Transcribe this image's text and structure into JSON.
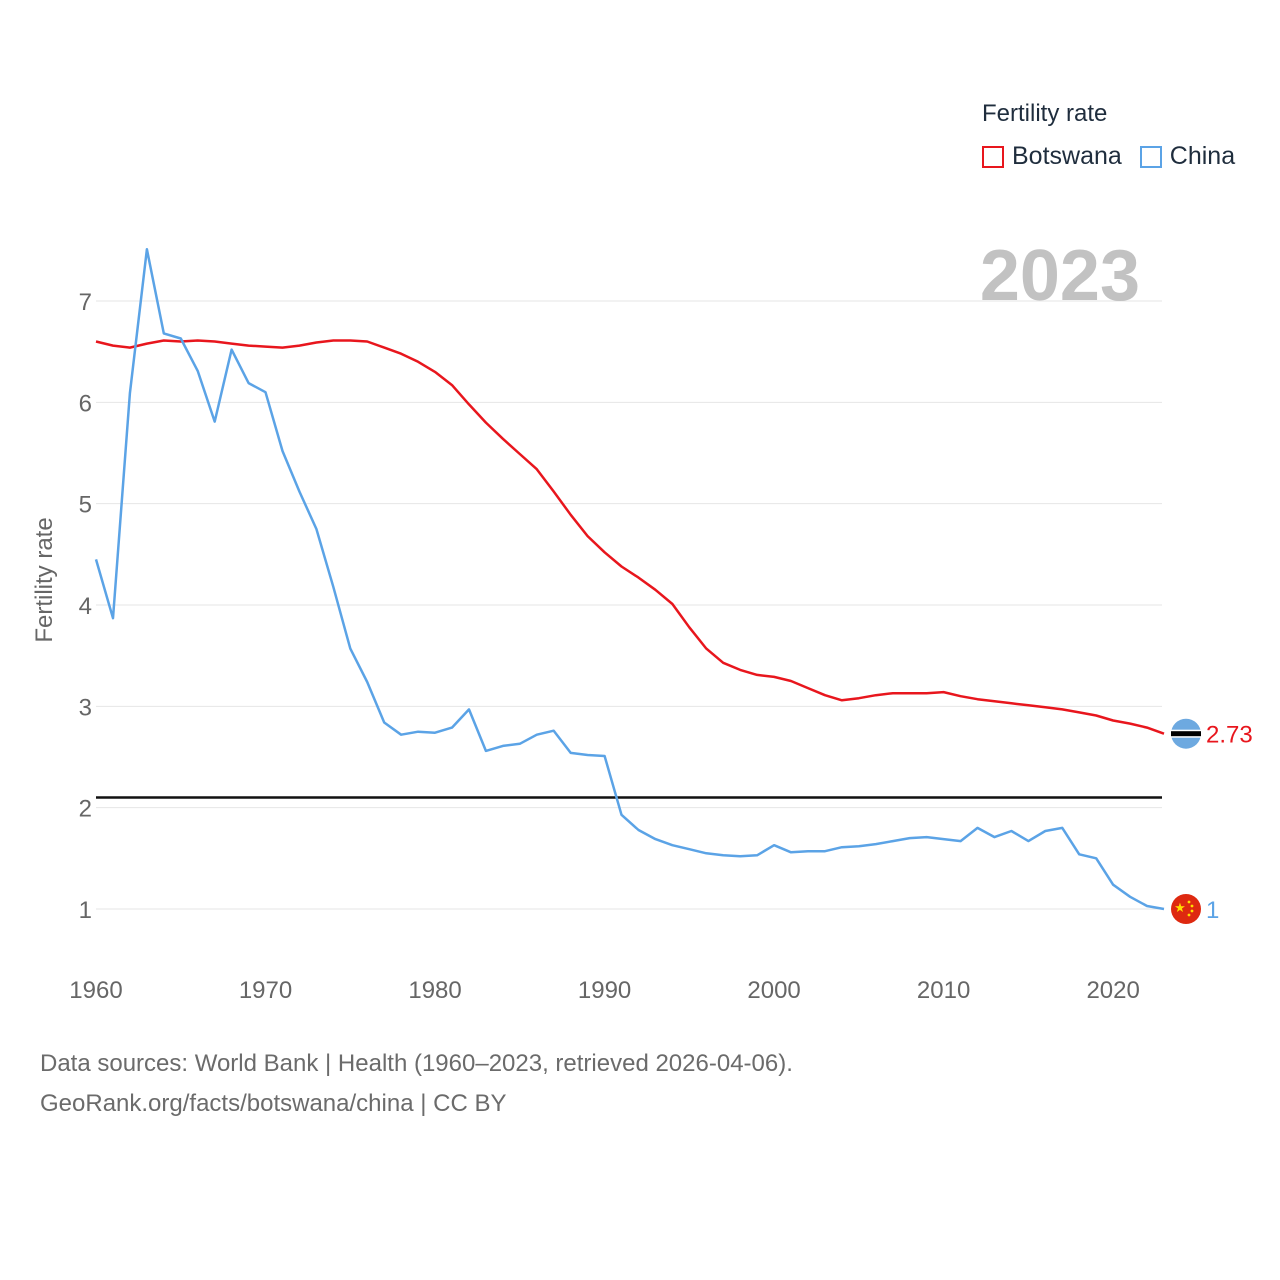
{
  "legend": {
    "title": "Fertility rate",
    "items": [
      {
        "name": "Botswana",
        "color": "#e8161d"
      },
      {
        "name": "China",
        "color": "#5ba3e6"
      }
    ]
  },
  "year_label": "2023",
  "footer": {
    "line1": "Data sources: World Bank | Health (1960–2023, retrieved 2026-04-06).",
    "line2": "GeoRank.org/facts/botswana/china | CC BY"
  },
  "chart_data": {
    "type": "line",
    "title": "Fertility rate",
    "xlabel": "",
    "ylabel": "Fertility rate",
    "xlim": [
      1960,
      2023
    ],
    "ylim": [
      0.5,
      7.5
    ],
    "x_ticks": [
      1960,
      1970,
      1980,
      1990,
      2000,
      2010,
      2020
    ],
    "y_ticks": [
      1,
      2,
      3,
      4,
      5,
      6,
      7
    ],
    "reference_line": 2.1,
    "x": [
      1960,
      1961,
      1962,
      1963,
      1964,
      1965,
      1966,
      1967,
      1968,
      1969,
      1970,
      1971,
      1972,
      1973,
      1974,
      1975,
      1976,
      1977,
      1978,
      1979,
      1980,
      1981,
      1982,
      1983,
      1984,
      1985,
      1986,
      1987,
      1988,
      1989,
      1990,
      1991,
      1992,
      1993,
      1994,
      1995,
      1996,
      1997,
      1998,
      1999,
      2000,
      2001,
      2002,
      2003,
      2004,
      2005,
      2006,
      2007,
      2008,
      2009,
      2010,
      2011,
      2012,
      2013,
      2014,
      2015,
      2016,
      2017,
      2018,
      2019,
      2020,
      2021,
      2022,
      2023
    ],
    "series": [
      {
        "name": "Botswana",
        "color": "#e8161d",
        "end_label": "2.73",
        "values": [
          6.6,
          6.56,
          6.54,
          6.58,
          6.61,
          6.6,
          6.61,
          6.6,
          6.58,
          6.56,
          6.55,
          6.54,
          6.56,
          6.59,
          6.61,
          6.61,
          6.6,
          6.54,
          6.48,
          6.4,
          6.3,
          6.17,
          5.98,
          5.8,
          5.64,
          5.49,
          5.34,
          5.12,
          4.89,
          4.68,
          4.52,
          4.38,
          4.27,
          4.15,
          4.01,
          3.78,
          3.57,
          3.43,
          3.36,
          3.31,
          3.29,
          3.25,
          3.18,
          3.11,
          3.06,
          3.08,
          3.11,
          3.13,
          3.13,
          3.13,
          3.14,
          3.1,
          3.07,
          3.05,
          3.03,
          3.01,
          2.99,
          2.97,
          2.94,
          2.91,
          2.86,
          2.83,
          2.79,
          2.73
        ]
      },
      {
        "name": "China",
        "color": "#5ba3e6",
        "end_label": "1",
        "values": [
          4.45,
          3.87,
          6.09,
          7.51,
          6.68,
          6.63,
          6.31,
          5.81,
          6.52,
          6.19,
          6.1,
          5.52,
          5.12,
          4.75,
          4.18,
          3.57,
          3.24,
          2.84,
          2.72,
          2.75,
          2.74,
          2.79,
          2.97,
          2.56,
          2.61,
          2.63,
          2.72,
          2.76,
          2.54,
          2.52,
          2.51,
          1.93,
          1.78,
          1.69,
          1.63,
          1.59,
          1.55,
          1.53,
          1.52,
          1.53,
          1.63,
          1.56,
          1.57,
          1.57,
          1.61,
          1.62,
          1.64,
          1.67,
          1.7,
          1.71,
          1.69,
          1.67,
          1.8,
          1.71,
          1.77,
          1.67,
          1.77,
          1.8,
          1.54,
          1.5,
          1.24,
          1.12,
          1.03,
          1.0
        ]
      }
    ]
  }
}
